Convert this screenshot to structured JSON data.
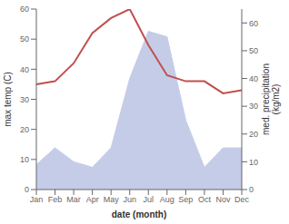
{
  "chart_data": {
    "type": "line",
    "xlabel": "date (month)",
    "ylabel": "max temp (C)",
    "y2label": "med. precipitation\n(kg/m2)",
    "categories": [
      "Jan",
      "Feb",
      "Mar",
      "Apr",
      "May",
      "Jun",
      "Jul",
      "Aug",
      "Sep",
      "Oct",
      "Nov",
      "Dec"
    ],
    "series": [
      {
        "type": "line",
        "color": "#c0504d",
        "values": [
          35,
          36,
          42,
          52,
          57,
          60,
          48,
          38,
          36,
          36,
          32,
          33
        ]
      },
      {
        "type": "area",
        "color": "#c5cce8",
        "axis": "y2",
        "values": [
          9,
          15,
          10,
          8,
          15,
          40,
          57,
          55,
          25,
          8,
          15,
          15
        ]
      }
    ],
    "ylim": [
      0,
      60
    ],
    "yticks": [
      0,
      10,
      20,
      30,
      40,
      50,
      60
    ],
    "y2lim": [
      0,
      65
    ],
    "y2ticks": [
      0,
      10,
      20,
      30,
      40,
      50,
      60
    ],
    "grid": false
  }
}
